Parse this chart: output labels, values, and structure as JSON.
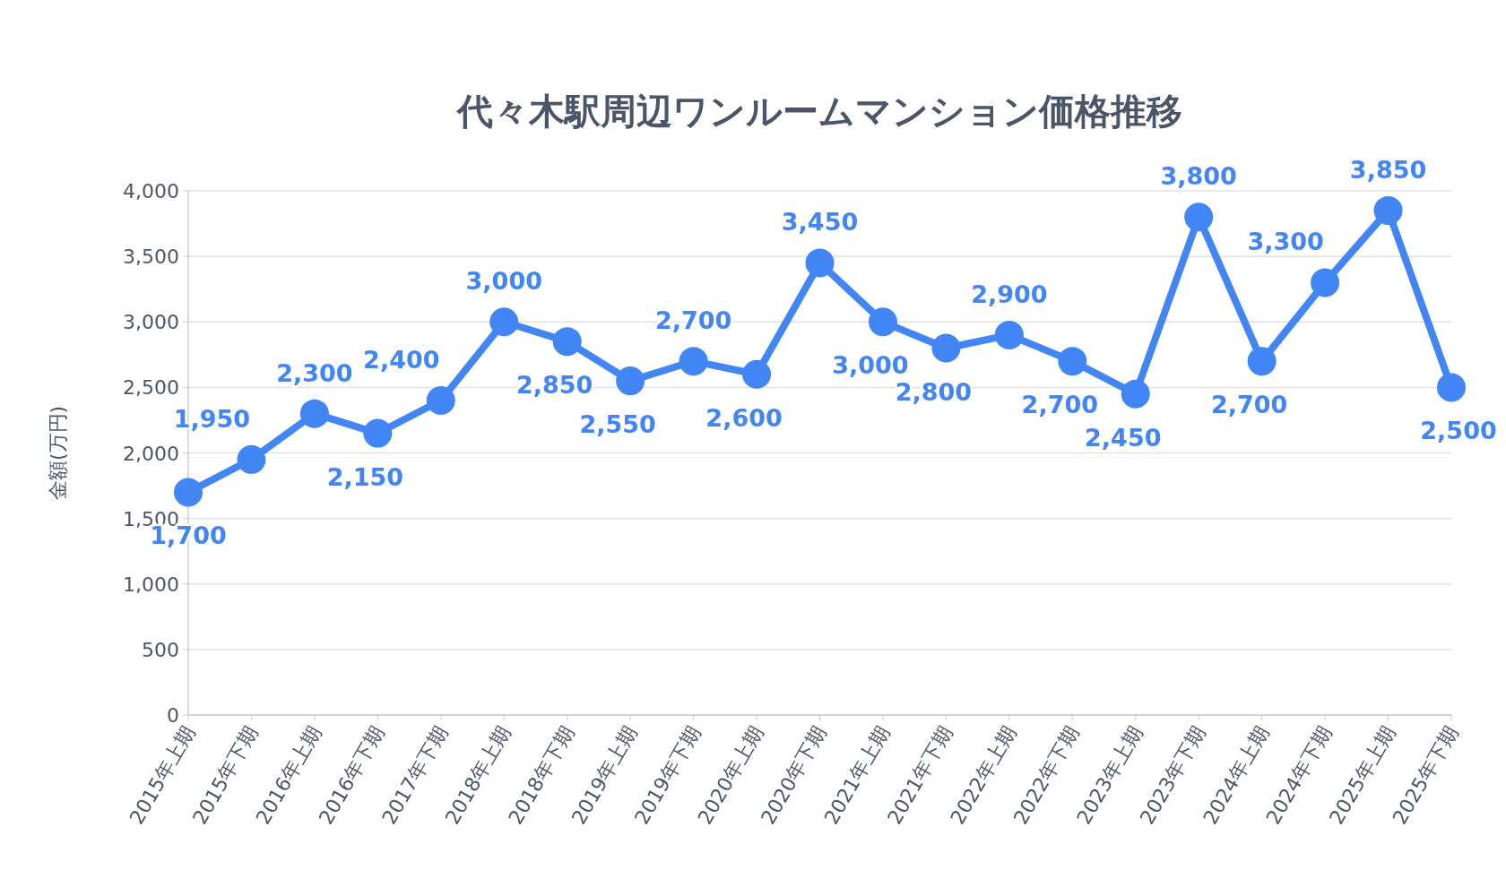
{
  "chart_data": {
    "type": "line",
    "title": "代々木駅周辺ワンルームマンション価格推移",
    "ylabel": "金額(万円)",
    "categories": [
      "2015年上期",
      "2015年下期",
      "2016年上期",
      "2016年下期",
      "2017年下期",
      "2018年上期",
      "2018年下期",
      "2019年上期",
      "2019年下期",
      "2020年上期",
      "2020年下期",
      "2021年上期",
      "2021年下期",
      "2022年上期",
      "2022年下期",
      "2023年上期",
      "2023年下期",
      "2024年上期",
      "2024年下期",
      "2025年上期",
      "2025年下期"
    ],
    "series": [
      {
        "color": "#4285f4",
        "values": [
          1700,
          1950,
          2300,
          2150,
          2400,
          3000,
          2850,
          2550,
          2700,
          2600,
          3450,
          3000,
          2800,
          2900,
          2700,
          2450,
          3800,
          2700,
          3300,
          3850,
          2500
        ],
        "value_labels": [
          "1,700",
          "1,950",
          "2,300",
          "2,150",
          "2,400",
          "3,000",
          "2,850",
          "2,550",
          "2,700",
          "2,600",
          "3,450",
          "3,000",
          "2,800",
          "2,900",
          "2,700",
          "2,450",
          "3,800",
          "2,700",
          "3,300",
          "3,850",
          "2,500"
        ]
      }
    ],
    "ylim": [
      0,
      4000
    ],
    "yticks": [
      0,
      500,
      {
        "value": 1000,
        "label": "1,000"
      },
      {
        "value": 1500,
        "label": "1,500"
      },
      {
        "value": 2000,
        "label": "2,000"
      },
      {
        "value": 2500,
        "label": "2,500"
      },
      {
        "value": 3000,
        "label": "3,000"
      },
      {
        "value": 3500,
        "label": "3,500"
      },
      {
        "value": 4000,
        "label": "4,000"
      }
    ],
    "grid": "y",
    "marker": "circle",
    "line_style": "solid"
  }
}
